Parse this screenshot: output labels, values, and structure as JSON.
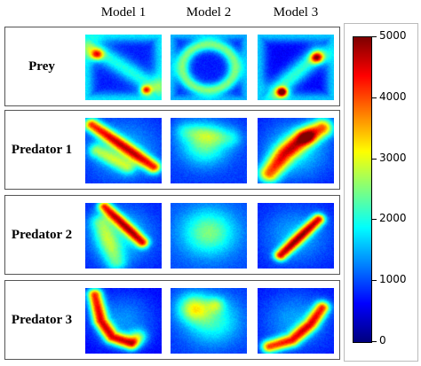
{
  "columns": [
    "Model 1",
    "Model 2",
    "Model 3"
  ],
  "rows": [
    {
      "label": "Prey",
      "patterns": [
        "prey-m1",
        "prey-m2",
        "prey-m3"
      ]
    },
    {
      "label": "Predator 1",
      "patterns": [
        "diag-strong",
        "blob",
        "diag-curve"
      ]
    },
    {
      "label": "Predator 2",
      "patterns": [
        "diag-steep",
        "blob-soft",
        "diag-line"
      ]
    },
    {
      "label": "Predator 3",
      "patterns": [
        "diag-curve-left",
        "blob-corner",
        "bottom-curve"
      ]
    }
  ],
  "colorbar": {
    "min": 0,
    "max": 5000,
    "ticks": [
      "0",
      "1000",
      "2000",
      "3000",
      "4000",
      "5000"
    ],
    "colormap": "jet"
  }
}
